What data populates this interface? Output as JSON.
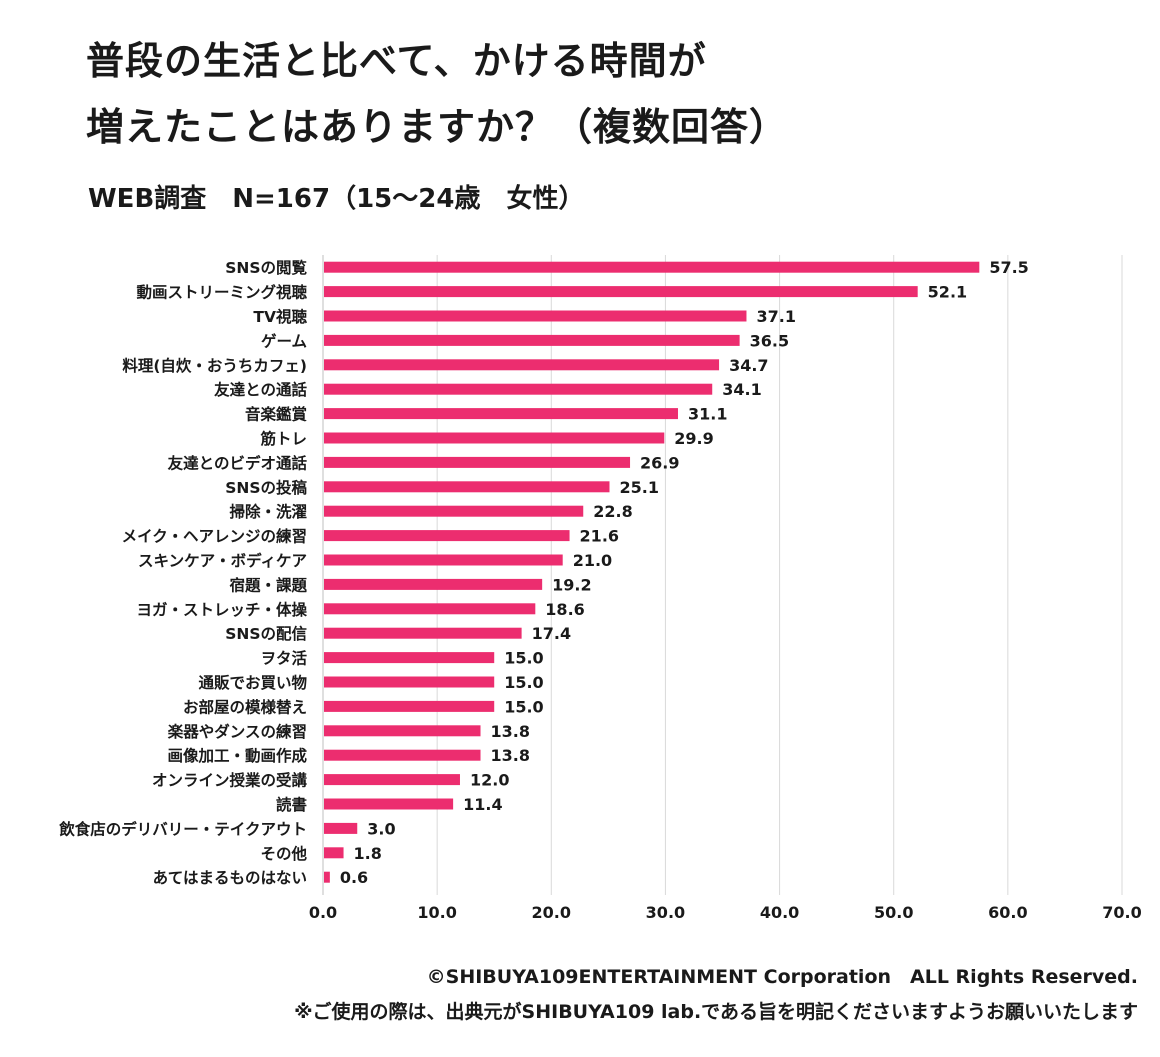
{
  "title_line1": "普段の生活と比べて、かける時間が",
  "title_line2": "増えたことはありますか？（複数回答）",
  "subtitle": "WEB調査　N=167（15～24歳　女性）",
  "footer_copyright": "©SHIBUYA109ENTERTAINMENT Corporation　ALL Rights Reserved.",
  "footer_note": "※ご使用の際は、出典元がSHIBUYA109 lab.である旨を明記くださいますようお願いいたします",
  "bar_color": "#ec2d6f",
  "chart_data": {
    "type": "bar",
    "orientation": "horizontal",
    "categories": [
      "SNSの閲覧",
      "動画ストリーミング視聴",
      "TV視聴",
      "ゲーム",
      "料理(自炊・おうちカフェ)",
      "友達との通話",
      "音楽鑑賞",
      "筋トレ",
      "友達とのビデオ通話",
      "SNSの投稿",
      "掃除・洗濯",
      "メイク・ヘアレンジの練習",
      "スキンケア・ボディケア",
      "宿題・課題",
      "ヨガ・ストレッチ・体操",
      "SNSの配信",
      "ヲタ活",
      "通販でお買い物",
      "お部屋の模様替え",
      "楽器やダンスの練習",
      "画像加工・動画作成",
      "オンライン授業の受講",
      "読書",
      "飲食店のデリバリー・テイクアウト",
      "その他",
      "あてはまるものはない"
    ],
    "values": [
      57.5,
      52.1,
      37.1,
      36.5,
      34.7,
      34.1,
      31.1,
      29.9,
      26.9,
      25.1,
      22.8,
      21.6,
      21.0,
      19.2,
      18.6,
      17.4,
      15.0,
      15.0,
      15.0,
      13.8,
      13.8,
      12.0,
      11.4,
      3.0,
      1.8,
      0.6
    ],
    "value_labels": [
      "57.5",
      "52.1",
      "37.1",
      "36.5",
      "34.7",
      "34.1",
      "31.1",
      "29.9",
      "26.9",
      "25.1",
      "22.8",
      "21.6",
      "21.0",
      "19.2",
      "18.6",
      "17.4",
      "15.0",
      "15.0",
      "15.0",
      "13.8",
      "13.8",
      "12.0",
      "11.4",
      "3.0",
      "1.8",
      "0.6"
    ],
    "xlim": [
      0,
      70
    ],
    "xticks": [
      0,
      10,
      20,
      30,
      40,
      50,
      60,
      70
    ],
    "xtick_labels": [
      "0.0",
      "10.0",
      "20.0",
      "30.0",
      "40.0",
      "50.0",
      "60.0",
      "70.0"
    ],
    "grid": true
  }
}
